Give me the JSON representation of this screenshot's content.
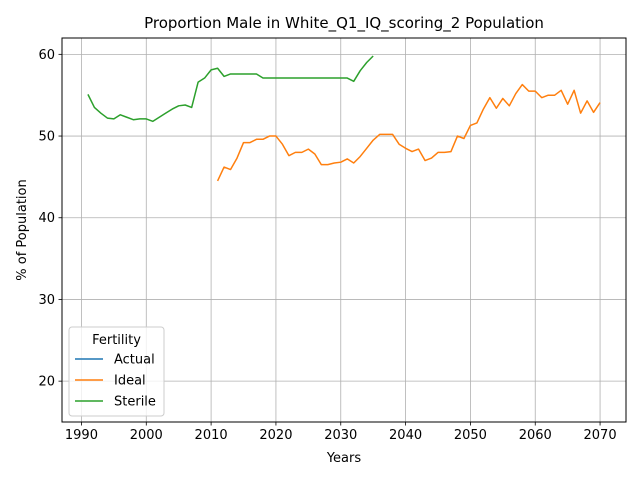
{
  "chart_data": {
    "type": "line",
    "title": "Proportion Male in White_Q1_IQ_scoring_2 Population",
    "xlabel": "Years",
    "ylabel": "% of Population",
    "xlim": [
      1987,
      2074
    ],
    "ylim": [
      15,
      62
    ],
    "xticks": [
      1990,
      2000,
      2010,
      2020,
      2030,
      2040,
      2050,
      2060,
      2070
    ],
    "yticks": [
      20,
      30,
      40,
      50,
      60
    ],
    "grid": true,
    "legend": {
      "title": "Fertility",
      "position": "lower-left",
      "entries": [
        "Actual",
        "Ideal",
        "Sterile"
      ]
    },
    "series": [
      {
        "name": "Actual",
        "color": "#1f77b4",
        "x": [],
        "y": []
      },
      {
        "name": "Ideal",
        "color": "#ff7f0e",
        "x": [
          2011,
          2012,
          2013,
          2014,
          2015,
          2016,
          2017,
          2018,
          2019,
          2020,
          2021,
          2022,
          2023,
          2024,
          2025,
          2026,
          2027,
          2028,
          2029,
          2030,
          2031,
          2032,
          2033,
          2034,
          2035,
          2036,
          2037,
          2038,
          2039,
          2040,
          2041,
          2042,
          2043,
          2044,
          2045,
          2046,
          2047,
          2048,
          2049,
          2050,
          2051,
          2052,
          2053,
          2054,
          2055,
          2056,
          2057,
          2058,
          2059,
          2060,
          2061,
          2062,
          2063,
          2064,
          2065,
          2066,
          2067,
          2068,
          2069,
          2070
        ],
        "y": [
          44.5,
          46.2,
          45.9,
          47.3,
          49.2,
          49.2,
          49.6,
          49.6,
          50.0,
          50.0,
          49.0,
          47.6,
          48.0,
          48.0,
          48.4,
          47.8,
          46.5,
          46.5,
          46.7,
          46.8,
          47.2,
          46.7,
          47.5,
          48.5,
          49.5,
          50.2,
          50.2,
          50.2,
          49.0,
          48.5,
          48.1,
          48.4,
          47.0,
          47.3,
          48.0,
          48.0,
          48.1,
          50.0,
          49.7,
          51.3,
          51.6,
          53.3,
          54.7,
          53.4,
          54.6,
          53.7,
          55.2,
          56.3,
          55.5,
          55.5,
          54.7,
          55.0,
          55.0,
          55.6,
          53.9,
          55.6,
          52.8,
          54.3,
          52.9,
          54.1
        ]
      },
      {
        "name": "Sterile",
        "color": "#2ca02c",
        "x": [
          1991,
          1992,
          1993,
          1994,
          1995,
          1996,
          1997,
          1998,
          1999,
          2000,
          2001,
          2002,
          2003,
          2004,
          2005,
          2006,
          2007,
          2008,
          2009,
          2010,
          2011,
          2012,
          2013,
          2014,
          2015,
          2016,
          2017,
          2018,
          2019,
          2020,
          2021,
          2022,
          2023,
          2024,
          2025,
          2026,
          2027,
          2028,
          2029,
          2030,
          2031,
          2032,
          2033,
          2034,
          2035
        ],
        "y": [
          55.1,
          53.5,
          52.8,
          52.2,
          52.1,
          52.6,
          52.3,
          52.0,
          52.1,
          52.1,
          51.8,
          52.3,
          52.8,
          53.3,
          53.7,
          53.8,
          53.5,
          56.6,
          57.1,
          58.1,
          58.3,
          57.3,
          57.6,
          57.6,
          57.6,
          57.6,
          57.6,
          57.1,
          57.1,
          57.1,
          57.1,
          57.1,
          57.1,
          57.1,
          57.1,
          57.1,
          57.1,
          57.1,
          57.1,
          57.1,
          57.1,
          56.7,
          58.0,
          59.0,
          59.8
        ]
      }
    ]
  }
}
